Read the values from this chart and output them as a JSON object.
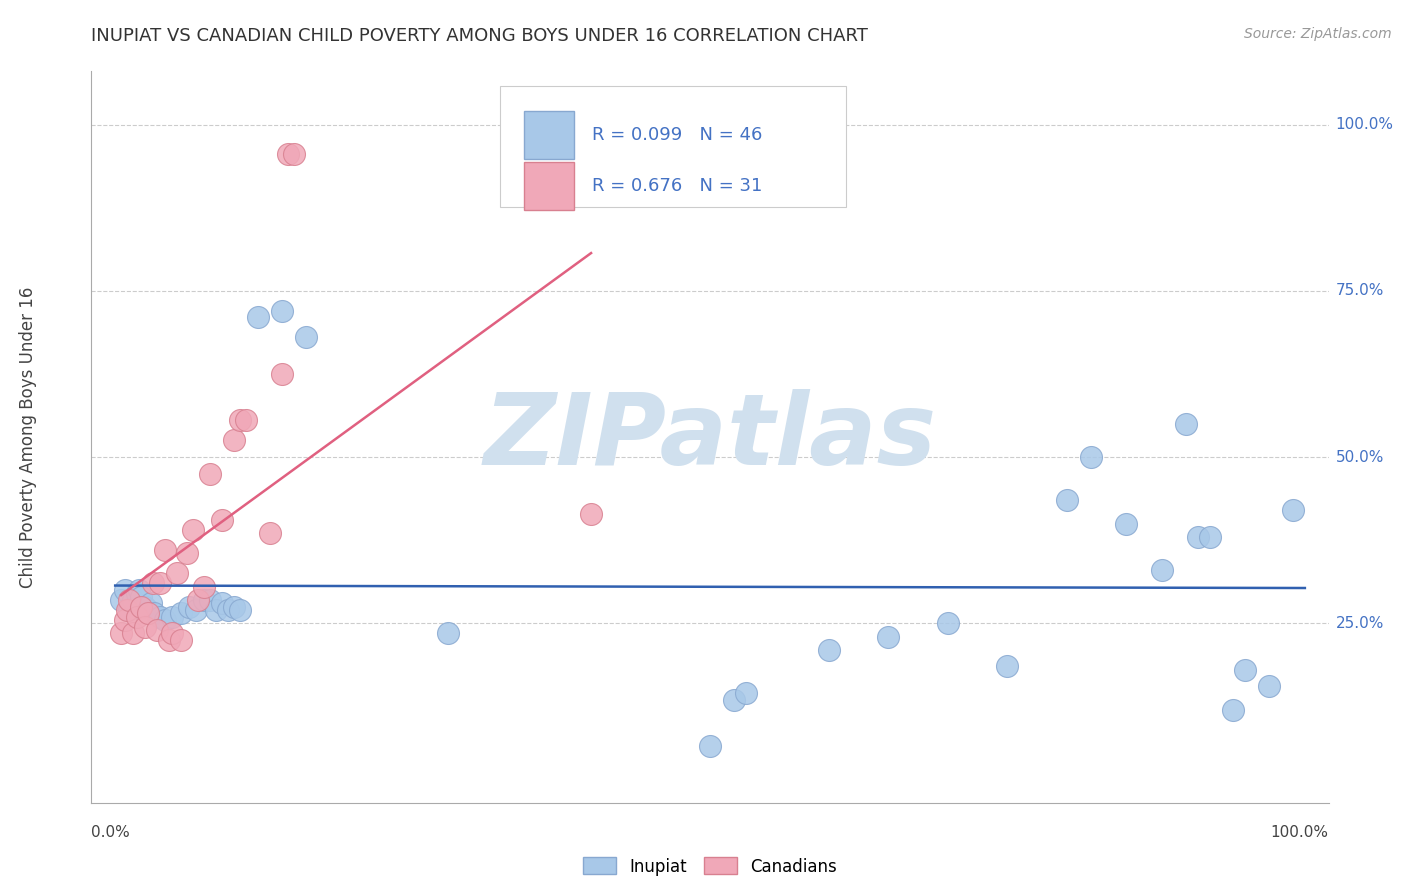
{
  "title": "INUPIAT VS CANADIAN CHILD POVERTY AMONG BOYS UNDER 16 CORRELATION CHART",
  "source": "Source: ZipAtlas.com",
  "ylabel": "Child Poverty Among Boys Under 16",
  "xlim": [
    -0.02,
    1.02
  ],
  "ylim": [
    -0.02,
    1.08
  ],
  "y_ticks": [
    0.25,
    0.5,
    0.75,
    1.0
  ],
  "y_tick_labels": [
    "25.0%",
    "50.0%",
    "75.0%",
    "100.0%"
  ],
  "inupiat_color": "#A8C8E8",
  "canadian_color": "#F0A8B8",
  "inupiat_edge_color": "#88A8D0",
  "canadian_edge_color": "#D88090",
  "inupiat_line_color": "#3060B0",
  "canadian_line_color": "#E06080",
  "inupiat_R": 0.099,
  "inupiat_N": 46,
  "canadian_R": 0.676,
  "canadian_N": 31,
  "watermark": "ZIPatlas",
  "watermark_color": "#D0E0EE",
  "background_color": "#FFFFFF",
  "grid_color": "#CCCCCC",
  "title_color": "#333333",
  "source_color": "#999999",
  "tick_label_color": "#4472C4",
  "inupiat_x": [
    0.005,
    0.008,
    0.012,
    0.015,
    0.018,
    0.02,
    0.022,
    0.025,
    0.028,
    0.03,
    0.033,
    0.038,
    0.042,
    0.048,
    0.055,
    0.062,
    0.068,
    0.075,
    0.08,
    0.085,
    0.09,
    0.095,
    0.1,
    0.105,
    0.12,
    0.14,
    0.16,
    0.28,
    0.5,
    0.52,
    0.53,
    0.6,
    0.65,
    0.7,
    0.75,
    0.8,
    0.82,
    0.85,
    0.88,
    0.9,
    0.91,
    0.92,
    0.94,
    0.95,
    0.97,
    0.99
  ],
  "inupiat_y": [
    0.285,
    0.3,
    0.27,
    0.285,
    0.295,
    0.3,
    0.29,
    0.275,
    0.27,
    0.28,
    0.265,
    0.26,
    0.255,
    0.26,
    0.265,
    0.275,
    0.27,
    0.285,
    0.285,
    0.27,
    0.28,
    0.27,
    0.275,
    0.27,
    0.71,
    0.72,
    0.68,
    0.235,
    0.065,
    0.135,
    0.145,
    0.21,
    0.23,
    0.25,
    0.185,
    0.435,
    0.5,
    0.4,
    0.33,
    0.55,
    0.38,
    0.38,
    0.12,
    0.18,
    0.155,
    0.42
  ],
  "canadian_x": [
    0.005,
    0.008,
    0.01,
    0.012,
    0.015,
    0.018,
    0.022,
    0.025,
    0.028,
    0.032,
    0.035,
    0.038,
    0.042,
    0.045,
    0.048,
    0.052,
    0.055,
    0.06,
    0.065,
    0.07,
    0.075,
    0.08,
    0.09,
    0.1,
    0.105,
    0.11,
    0.13,
    0.14,
    0.145,
    0.15,
    0.4
  ],
  "canadian_y": [
    0.235,
    0.255,
    0.27,
    0.285,
    0.235,
    0.26,
    0.275,
    0.245,
    0.265,
    0.31,
    0.24,
    0.31,
    0.36,
    0.225,
    0.235,
    0.325,
    0.225,
    0.355,
    0.39,
    0.285,
    0.305,
    0.475,
    0.405,
    0.525,
    0.555,
    0.555,
    0.385,
    0.625,
    0.955,
    0.955,
    0.415
  ]
}
